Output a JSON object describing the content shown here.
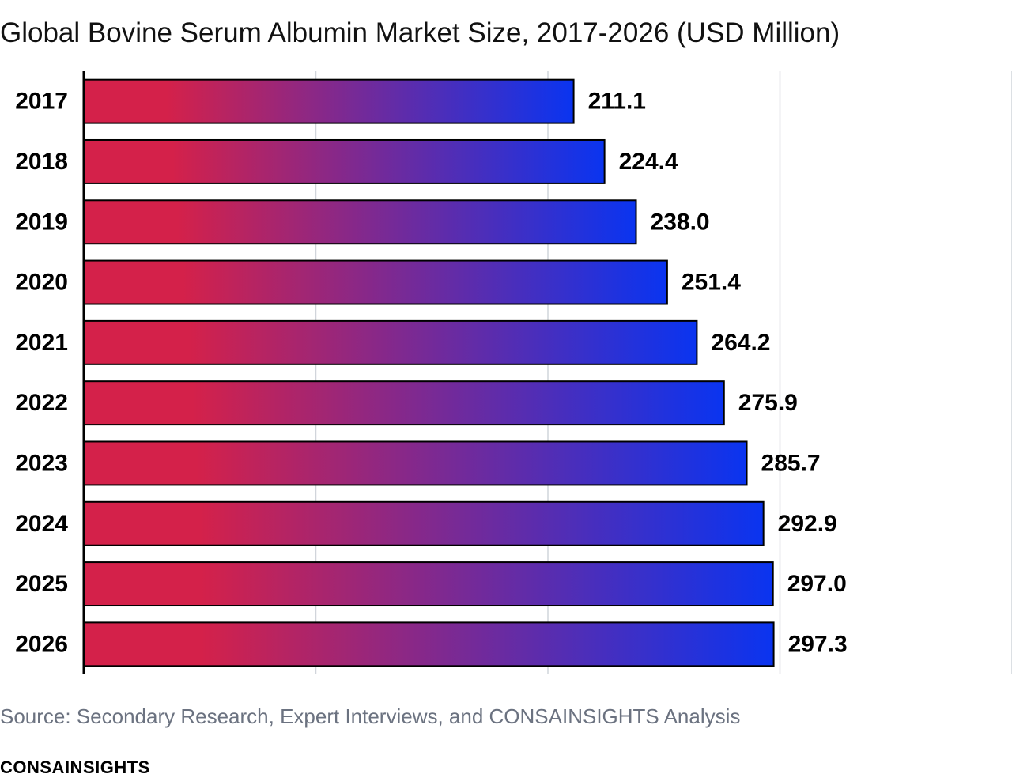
{
  "chart_data": {
    "type": "bar",
    "orientation": "horizontal",
    "title": "Global Bovine Serum Albumin Market Size, 2017-2026 (USD Million)",
    "categories": [
      "2017",
      "2018",
      "2019",
      "2020",
      "2021",
      "2022",
      "2023",
      "2024",
      "2025",
      "2026"
    ],
    "values": [
      211.1,
      224.4,
      238.0,
      251.4,
      264.2,
      275.9,
      285.7,
      292.9,
      297.0,
      297.3
    ],
    "value_labels": [
      "211.1",
      "224.4",
      "238.0",
      "251.4",
      "264.2",
      "275.9",
      "285.7",
      "292.9",
      "297.0",
      "297.3"
    ],
    "xlim": [
      0,
      400
    ],
    "grid": true,
    "gradient_colors": [
      "#d4214a",
      "#0a34f0"
    ]
  },
  "source_note": "Source: Secondary Research, Expert Interviews, and CONSAINSIGHTS Analysis",
  "brand": "CONSAINSIGHTS"
}
